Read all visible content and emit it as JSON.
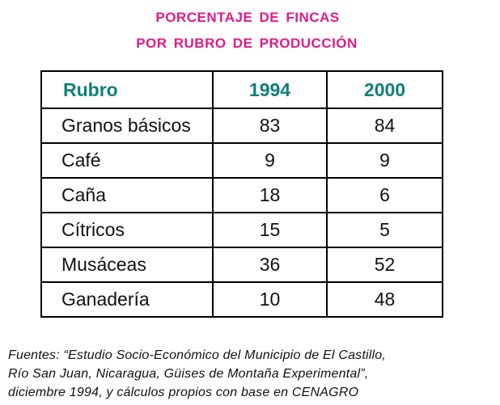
{
  "title": {
    "line1": "PORCENTAJE  DE  FINCAS",
    "line2": "POR  RUBRO  DE  PRODUCCIÓN"
  },
  "table": {
    "headers": [
      "Rubro",
      "1994",
      "2000"
    ],
    "rows": [
      {
        "rubro": "Granos  básicos",
        "y1994": "83",
        "y2000": "84"
      },
      {
        "rubro": "Café",
        "y1994": "9",
        "y2000": "9"
      },
      {
        "rubro": "Caña",
        "y1994": "18",
        "y2000": "6"
      },
      {
        "rubro": "Cítricos",
        "y1994": "15",
        "y2000": "5"
      },
      {
        "rubro": "Musáceas",
        "y1994": "36",
        "y2000": "52"
      },
      {
        "rubro": "Ganadería",
        "y1994": "10",
        "y2000": "48"
      }
    ]
  },
  "source": {
    "line1": "Fuentes: “Estudio Socio-Económico del Municipio de El Castillo,",
    "line2": "Río San Juan, Nicaragua, Güises de Montaña Experimental”,",
    "line3": "diciembre 1994, y cálculos propios con base en CENAGRO"
  },
  "colors": {
    "title": "#e0198c",
    "header": "#0f7f7a",
    "border": "#000000"
  }
}
